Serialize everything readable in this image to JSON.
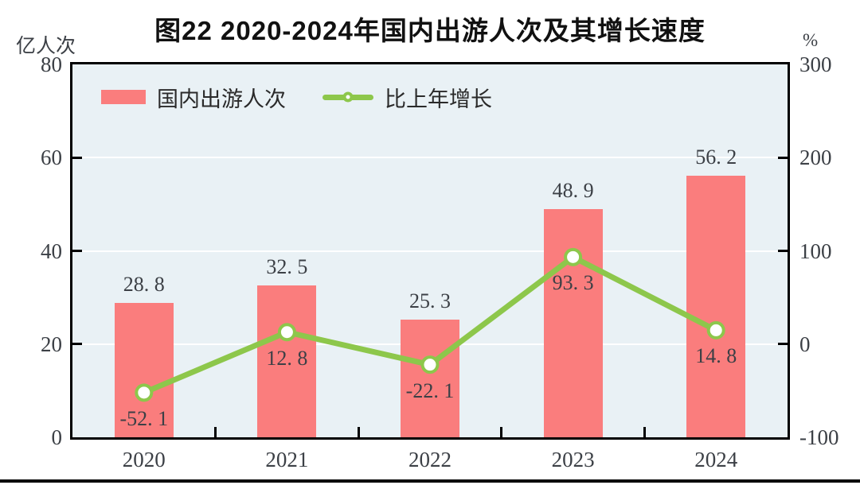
{
  "chart_data": {
    "type": "bar",
    "combo": "bar+line",
    "title": "图22  2020-2024年国内出游人次及其增长速度",
    "categories": [
      "2020",
      "2021",
      "2022",
      "2023",
      "2024"
    ],
    "series": [
      {
        "name": "国内出游人次",
        "type": "bar",
        "axis": "left",
        "values": [
          28.8,
          32.5,
          25.3,
          48.9,
          56.2
        ],
        "color": "#FA7D7D"
      },
      {
        "name": "比上年增长",
        "type": "line",
        "axis": "right",
        "values": [
          -52.1,
          12.8,
          -22.1,
          93.3,
          14.8
        ],
        "color": "#8DC74B"
      }
    ],
    "left_axis": {
      "unit": "亿人次",
      "min": 0,
      "max": 80,
      "ticks": [
        0,
        20,
        40,
        60,
        80
      ]
    },
    "right_axis": {
      "unit": "%",
      "min": -100,
      "max": 300,
      "ticks": [
        -100,
        0,
        100,
        200,
        300
      ]
    },
    "grid": true,
    "legend_position": "top-left",
    "style": {
      "plot_bg": "#E9F1F5",
      "grid_color": "#FFFFFF",
      "frame_color": "#000000",
      "text_color": "#3C4046",
      "marker_fill": "#FFFFFF"
    }
  }
}
